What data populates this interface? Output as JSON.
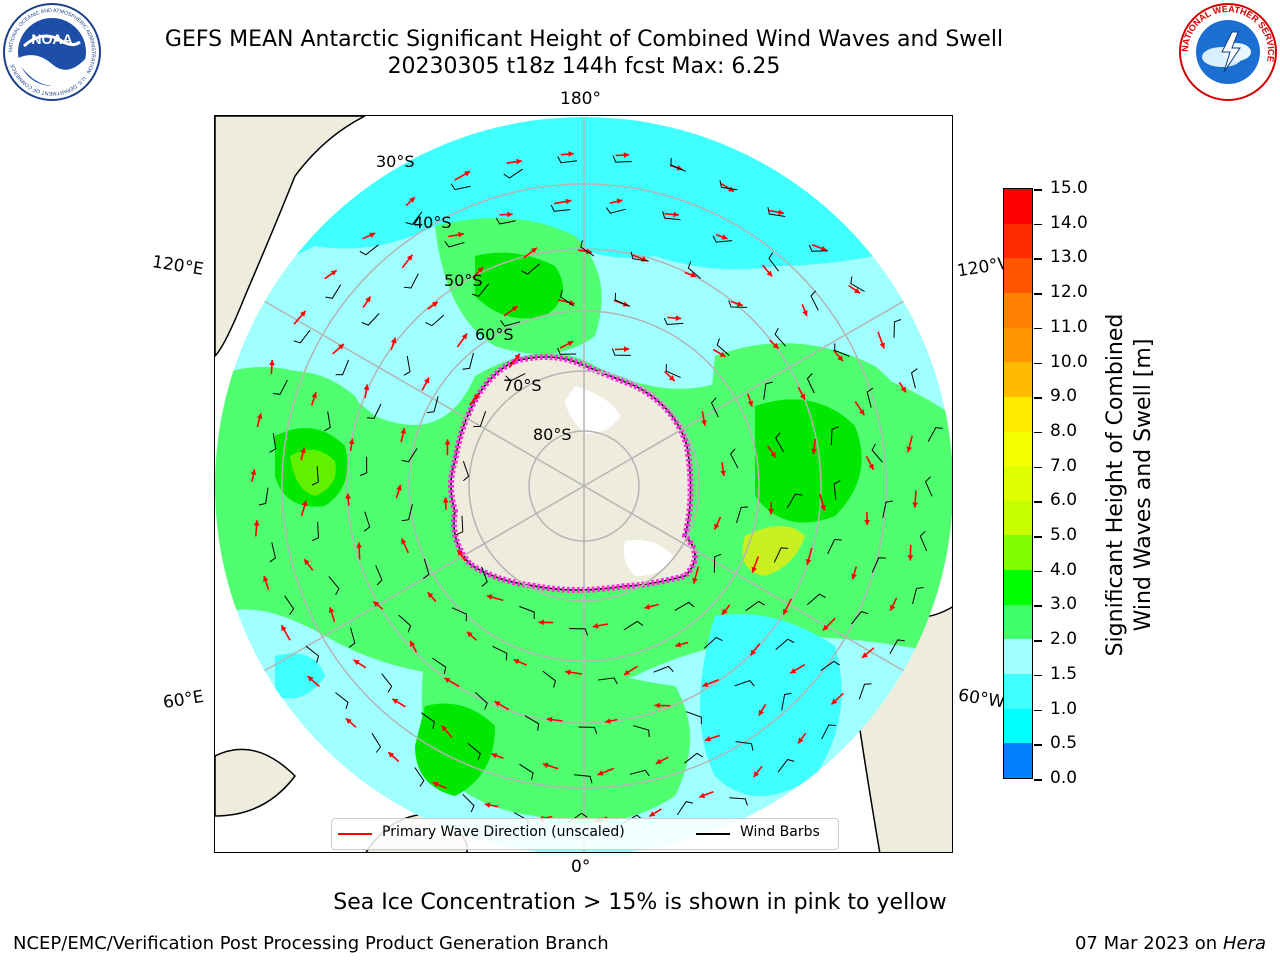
{
  "header": {
    "title_line1": "GEFS MEAN Antarctic Significant Height of Combined Wind Waves and Swell",
    "title_line2": "20230305 t18z 144h fcst   Max: 6.25"
  },
  "map": {
    "longitude_labels": {
      "top": "180°",
      "bottom": "0°",
      "upper_left": "120°E",
      "upper_right": "120°W",
      "lower_left": "60°E",
      "lower_right": "60°W"
    },
    "latitude_labels": [
      "30°S",
      "40°S",
      "50°S",
      "60°S",
      "70°S",
      "80°S"
    ],
    "legend": {
      "primary_wave": "Primary Wave Direction (unscaled)",
      "wind_barbs": "Wind Barbs"
    },
    "colors": {
      "land": "#eeecdc",
      "wave_1_5_2": "#40ffff",
      "wave_2_3": "#a0ffff",
      "wave_3_4": "#50ff70",
      "wave_4_5": "#00e800",
      "wave_5_6": "#60f000",
      "wave_6_7": "#c8f020",
      "arrow": "#ff0000",
      "sea_ice": "#ff33dd",
      "graticule": "#b4b4b4"
    },
    "max_value": 6.25
  },
  "colorbar": {
    "title_line1": "Significant Height of Combined",
    "title_line2": "Wind Waves and Swell [m]",
    "levels": [
      {
        "label": "15.0",
        "color": "#ff0000"
      },
      {
        "label": "14.0",
        "color": "#ff2a00"
      },
      {
        "label": "13.0",
        "color": "#ff5500"
      },
      {
        "label": "12.0",
        "color": "#ff7f00"
      },
      {
        "label": "11.0",
        "color": "#ff9500"
      },
      {
        "label": "10.0",
        "color": "#ffb900"
      },
      {
        "label": "9.0",
        "color": "#ffea00"
      },
      {
        "label": "8.0",
        "color": "#f5ff00"
      },
      {
        "label": "7.0",
        "color": "#ddff00"
      },
      {
        "label": "6.0",
        "color": "#c8ff00"
      },
      {
        "label": "5.0",
        "color": "#7fff00"
      },
      {
        "label": "4.0",
        "color": "#00ff00"
      },
      {
        "label": "3.0",
        "color": "#3fff6a"
      },
      {
        "label": "2.0",
        "color": "#a0ffff"
      },
      {
        "label": "1.5",
        "color": "#3fffff"
      },
      {
        "label": "1.0",
        "color": "#00ffff"
      },
      {
        "label": "0.5",
        "color": "#007fff"
      },
      {
        "label": "0.0",
        "color": "#0000ff"
      }
    ]
  },
  "footnote": "Sea Ice Concentration > 15% is shown in pink to yellow",
  "footer": {
    "left": "NCEP/EMC/Verification Post Processing Product Generation Branch",
    "right_date": "07 Mar 2023 on",
    "right_machine": "Hera"
  },
  "logos": {
    "noaa_text": "NOAA",
    "noaa_ring_text": "NATIONAL OCEANIC AND ATMOSPHERIC ADMINISTRATION · U.S. DEPARTMENT OF COMMERCE",
    "nws_ring_text": "NATIONAL WEATHER SERVICE"
  }
}
